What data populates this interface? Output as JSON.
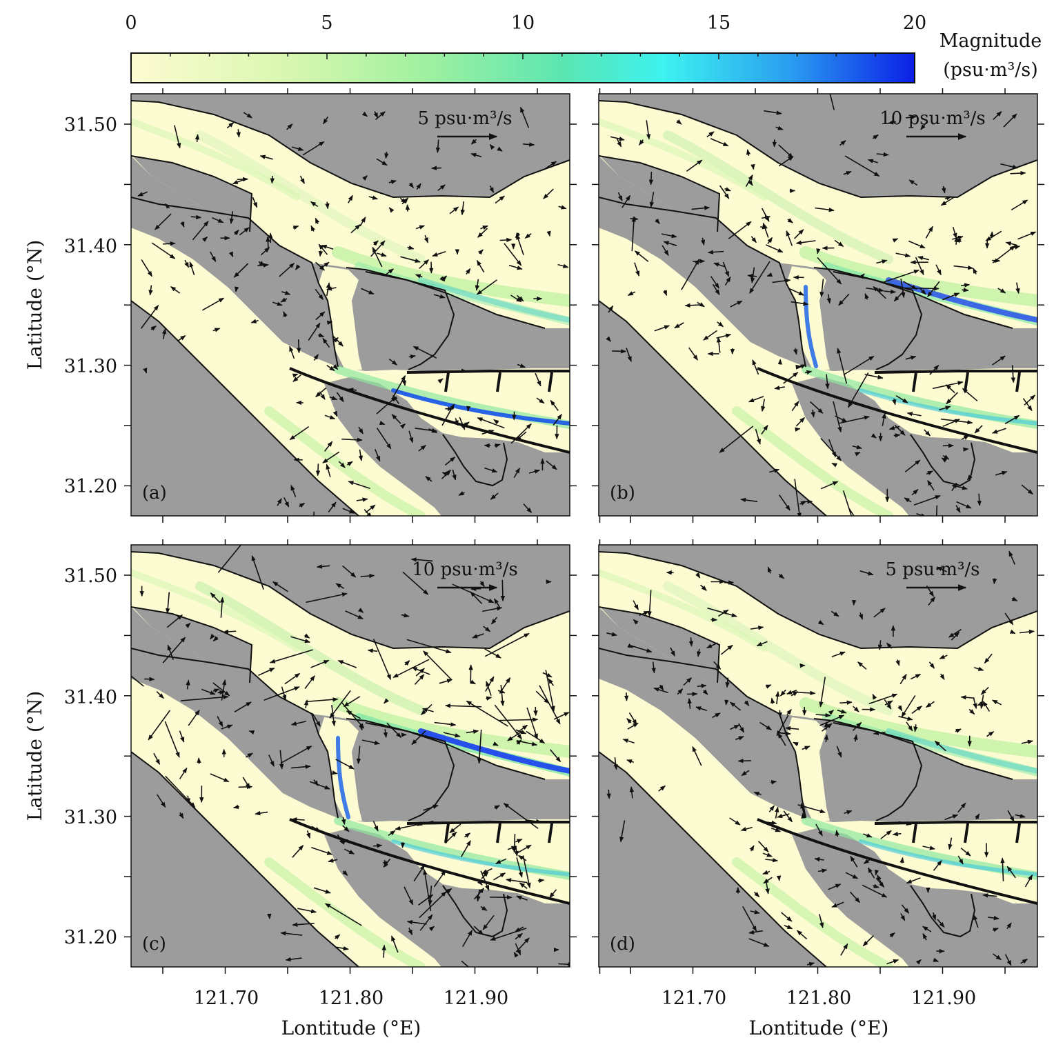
{
  "colorbar": {
    "ticks": [
      "0",
      "5",
      "10",
      "15",
      "20"
    ],
    "title_line1": "Magnitude",
    "title_line2": "(psu·m³/s)",
    "min": 0,
    "max": 20,
    "colors": [
      "#fdfbd2",
      "#d9f7b0",
      "#9ef0a0",
      "#5ce6b2",
      "#3df2f0",
      "#2a9ef0",
      "#0b1fe6"
    ]
  },
  "axes": {
    "ylabel": "Latitude (°N)",
    "xlabel": "Lontitude (°E)",
    "yticks": [
      "31.50",
      "31.40",
      "31.30",
      "31.20"
    ],
    "xticks": [
      "121.70",
      "121.80",
      "121.90"
    ],
    "lon_range": [
      121.625,
      121.975
    ],
    "lat_range": [
      31.175,
      31.525
    ]
  },
  "colors": {
    "land": "#9c9c9c",
    "water_low": "#fdfbd2",
    "arrow": "#111111"
  },
  "panels": [
    {
      "label": "(a)",
      "scale": "5 psu·m³/s",
      "intensity": 0.55
    },
    {
      "label": "(b)",
      "scale": "10 psu·m³/s",
      "intensity": 0.85
    },
    {
      "label": "(c)",
      "scale": "10 psu·m³/s",
      "intensity": 1.0
    },
    {
      "label": "(d)",
      "scale": "5 psu·m³/s",
      "intensity": 0.6
    }
  ]
}
